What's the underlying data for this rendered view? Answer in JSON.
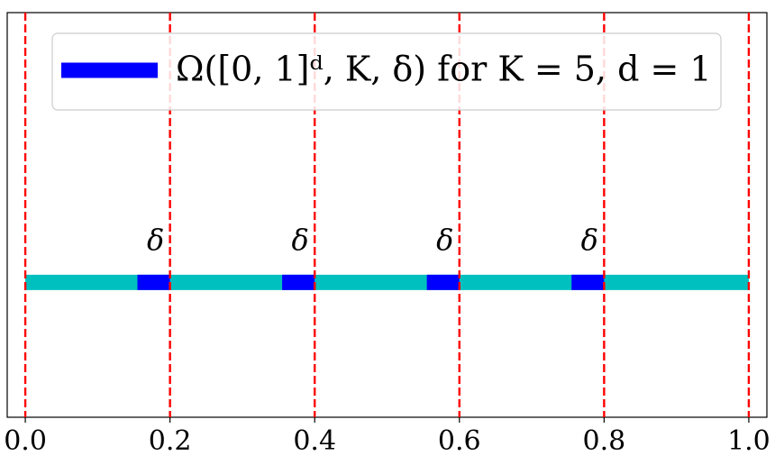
{
  "chart_data": {
    "type": "segments",
    "xlim": [
      -0.025,
      1.025
    ],
    "ylim": [
      -0.5,
      1
    ],
    "xticks": [
      {
        "value": 0,
        "label": "0.0"
      },
      {
        "value": 0.2,
        "label": "0.2"
      },
      {
        "value": 0.4,
        "label": "0.4"
      },
      {
        "value": 0.6,
        "label": "0.6"
      },
      {
        "value": 0.8,
        "label": "0.8"
      },
      {
        "value": 1,
        "label": "1.0"
      }
    ],
    "vlines": {
      "color": "#ff0000",
      "x": [
        0,
        0.2,
        0.4,
        0.6,
        0.8,
        1
      ]
    },
    "base": {
      "color": "#00bfbf",
      "x": [
        0,
        1
      ],
      "values": [
        0,
        0
      ]
    },
    "series": [
      {
        "name": "Ω([0, 1]ᵈ, K, δ) for K = 5, d = 1",
        "color": "#0000ff",
        "starts": [
          0.155,
          0.355,
          0.555,
          0.755
        ],
        "ends": [
          0.2,
          0.4,
          0.6,
          0.8
        ],
        "values": [
          0,
          0,
          0,
          0
        ]
      }
    ],
    "annotations": [
      {
        "text": "δ",
        "x": 0.18,
        "y": 0.15
      },
      {
        "text": "δ",
        "x": 0.38,
        "y": 0.15
      },
      {
        "text": "δ",
        "x": 0.58,
        "y": 0.15
      },
      {
        "text": "δ",
        "x": 0.78,
        "y": 0.15
      }
    ],
    "legend": "upper center"
  }
}
